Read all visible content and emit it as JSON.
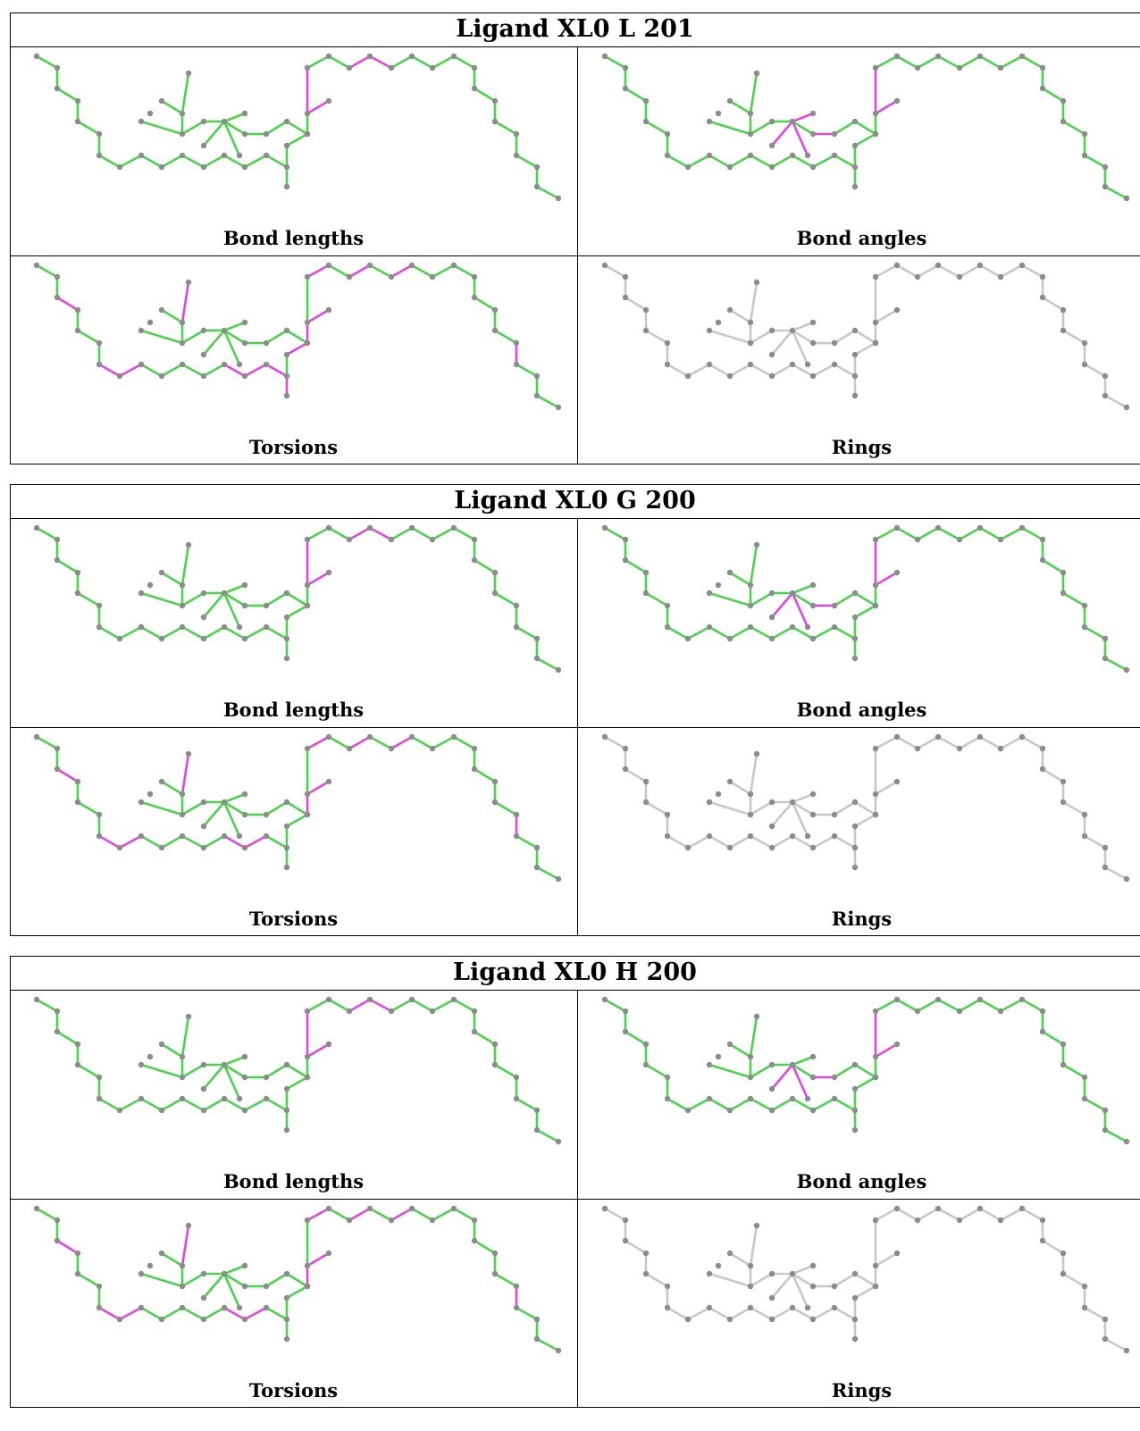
{
  "colors": {
    "ok": "#4cd24c",
    "outlier": "#e146e1",
    "neutral": "#c8c8c8",
    "atom": "#8c8c8c"
  },
  "blocks": [
    {
      "title": "Ligand XL0 L 201",
      "panels": [
        {
          "label": "Bond lengths",
          "highlight": [
            19,
            20,
            23,
            24
          ]
        },
        {
          "label": "Bond angles",
          "highlight": [
            19,
            20,
            30,
            31,
            32,
            33
          ]
        },
        {
          "label": "Torsions",
          "highlight": [
            2,
            6,
            7,
            12,
            13,
            14,
            15,
            17,
            18,
            19,
            21,
            23,
            25,
            40,
            48
          ]
        },
        {
          "label": "Rings",
          "highlight": []
        }
      ]
    },
    {
      "title": "Ligand XL0 G 200",
      "panels": [
        {
          "label": "Bond lengths",
          "highlight": [
            19,
            20,
            23,
            24
          ]
        },
        {
          "label": "Bond angles",
          "highlight": [
            19,
            20,
            31,
            32,
            33
          ]
        },
        {
          "label": "Torsions",
          "highlight": [
            2,
            6,
            7,
            12,
            13,
            18,
            19,
            21,
            23,
            25,
            40,
            48
          ]
        },
        {
          "label": "Rings",
          "highlight": []
        }
      ]
    },
    {
      "title": "Ligand XL0 H 200",
      "panels": [
        {
          "label": "Bond lengths",
          "highlight": [
            19,
            20,
            23,
            24
          ]
        },
        {
          "label": "Bond angles",
          "highlight": [
            19,
            20,
            31,
            32,
            33
          ]
        },
        {
          "label": "Torsions",
          "highlight": [
            2,
            6,
            7,
            12,
            13,
            18,
            19,
            21,
            23,
            25,
            40,
            48
          ]
        },
        {
          "label": "Rings",
          "highlight": []
        }
      ]
    }
  ]
}
